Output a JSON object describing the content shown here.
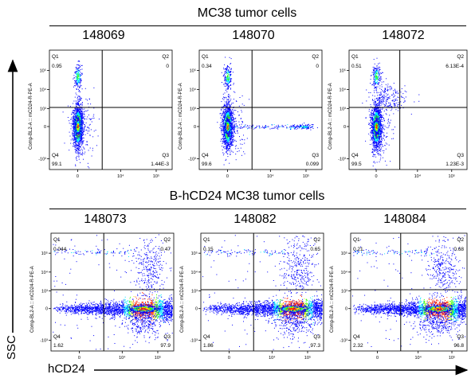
{
  "figure": {
    "y_axis_caption": "SSC",
    "x_axis_caption": "hCD24"
  },
  "chart_data": [
    {
      "type": "scatter",
      "group": "MC38 tumor cells",
      "sample": "148069",
      "ylabel": "Comp-BL2-A :: mCD24-R-PE-A",
      "y_ticks": [
        "10⁵",
        "10⁴",
        "10³",
        "0",
        "-10³"
      ],
      "x_ticks": [
        "0",
        "10⁴",
        "10⁵"
      ],
      "quadrants": {
        "Q1": "0.95",
        "Q2": "0",
        "Q3": "1.44E-3",
        "Q4": "99.1"
      }
    },
    {
      "type": "scatter",
      "group": "MC38 tumor cells",
      "sample": "148070",
      "ylabel": "Comp-BL2-A :: mCD24-R-PE-A",
      "y_ticks": [
        "10⁵",
        "10⁴",
        "10³",
        "0",
        "-10³"
      ],
      "x_ticks": [
        "0",
        "10⁴",
        "10⁵"
      ],
      "quadrants": {
        "Q1": "0.34",
        "Q2": "0",
        "Q3": "0.099",
        "Q4": "99.6"
      }
    },
    {
      "type": "scatter",
      "group": "MC38 tumor cells",
      "sample": "148072",
      "ylabel": "Comp-BL2-A :: mCD24-R-PE-A",
      "y_ticks": [
        "10⁵",
        "10⁴",
        "10³",
        "0",
        "-10³"
      ],
      "x_ticks": [
        "0",
        "10⁴",
        "10⁵"
      ],
      "quadrants": {
        "Q1": "0.51",
        "Q2": "6.13E-4",
        "Q3": "1.23E-3",
        "Q4": "99.5"
      }
    },
    {
      "type": "scatter",
      "group": "B-hCD24 MC38 tumor cells",
      "sample": "148073",
      "ylabel": "Comp-BL2-A :: mCD24-R-PE-A",
      "y_ticks": [
        "10⁵",
        "10⁴",
        "10³",
        "0",
        "-10³"
      ],
      "x_ticks": [
        "0",
        "10⁴",
        "10⁵"
      ],
      "quadrants": {
        "Q1": "0.044",
        "Q2": "0.47",
        "Q3": "97.9",
        "Q4": "1.62"
      }
    },
    {
      "type": "scatter",
      "group": "B-hCD24 MC38 tumor cells",
      "sample": "148082",
      "ylabel": "Comp-BL2-A :: mCD24-R-PE-A",
      "y_ticks": [
        "10⁵",
        "10⁴",
        "10³",
        "0",
        "-10³"
      ],
      "x_ticks": [
        "0",
        "10⁴",
        "10⁵"
      ],
      "quadrants": {
        "Q1": "0.15",
        "Q2": "0.65",
        "Q3": "97.3",
        "Q4": "1.86"
      }
    },
    {
      "type": "scatter",
      "group": "B-hCD24 MC38 tumor cells",
      "sample": "148084",
      "ylabel": "Comp-BL2-A :: mCD24-R-PE-A",
      "y_ticks": [
        "10⁵",
        "10⁴",
        "10³",
        "0",
        "-10³"
      ],
      "x_ticks": [
        "0",
        "10⁴",
        "10⁵"
      ],
      "quadrants": {
        "Q1": "0.21",
        "Q2": "0.68",
        "Q3": "96.8",
        "Q4": "2.32"
      }
    }
  ],
  "colors": {
    "density_low": "#0000ff",
    "density_mid": "#00e5ff",
    "density_high_1": "#33ff00",
    "density_high_2": "#ffee00",
    "density_peak": "#ff2200",
    "gate_line": "#000000"
  }
}
